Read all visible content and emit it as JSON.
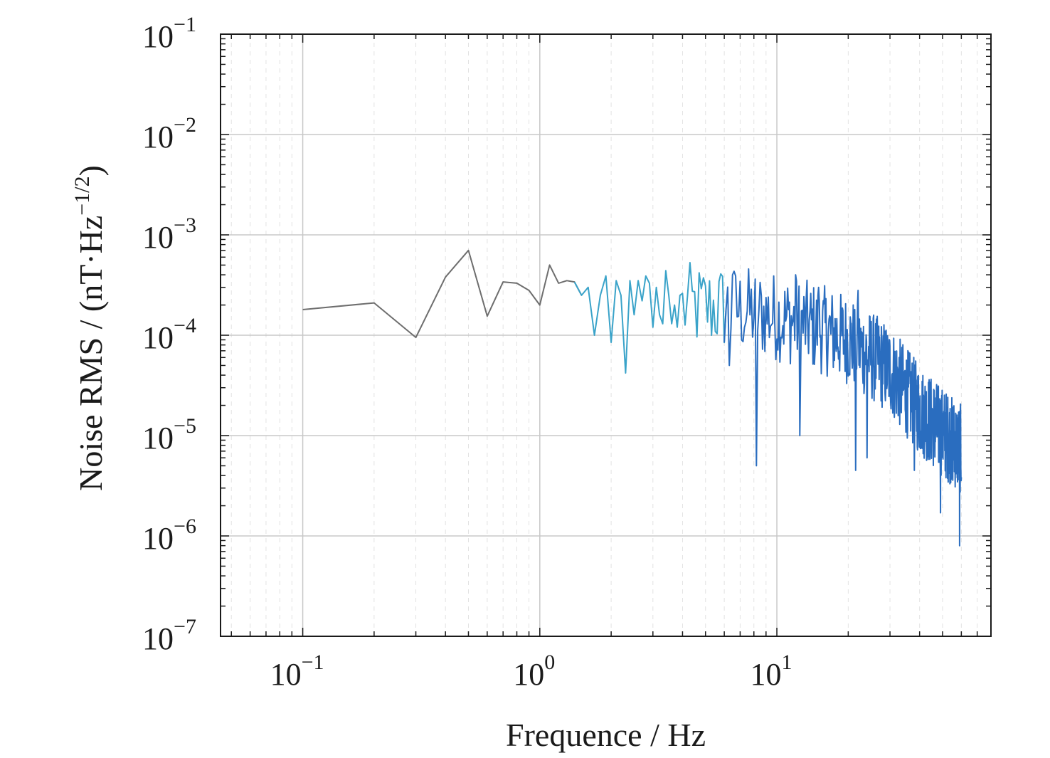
{
  "chart_data": {
    "type": "line",
    "title": "",
    "xlabel": "Frequence / Hz",
    "ylabel": "Noise RMS / (nT·Hz",
    "ylabel_sup": "−1/2",
    "ylabel_close": ")",
    "x_scale": "log",
    "y_scale": "log",
    "xlim": [
      0.045,
      80
    ],
    "ylim": [
      1e-07,
      0.1
    ],
    "grid": true,
    "legend": "none",
    "x_ticks": [
      {
        "value": 0.1,
        "base": "10",
        "exp": "−1"
      },
      {
        "value": 1,
        "base": "10",
        "exp": "0"
      },
      {
        "value": 10,
        "base": "10",
        "exp": "1"
      }
    ],
    "y_ticks": [
      {
        "value": 0.1,
        "base": "10",
        "exp": "−1"
      },
      {
        "value": 0.01,
        "base": "10",
        "exp": "−2"
      },
      {
        "value": 0.001,
        "base": "10",
        "exp": "−3"
      },
      {
        "value": 0.0001,
        "base": "10",
        "exp": "−4"
      },
      {
        "value": 1e-05,
        "base": "10",
        "exp": "−5"
      },
      {
        "value": 1e-06,
        "base": "10",
        "exp": "−6"
      },
      {
        "value": 1e-07,
        "base": "10",
        "exp": "−7"
      }
    ],
    "series": [
      {
        "color_start": "#6e6e6e",
        "color_mid": "#3aa3c9",
        "color_end": "#2a6dbf",
        "x": [
          0.1,
          0.2,
          0.3,
          0.4,
          0.5,
          0.6,
          0.7,
          0.8,
          0.9,
          1.0,
          1.1,
          1.2,
          1.3,
          1.4,
          1.5,
          1.6,
          1.7,
          1.8,
          1.9,
          2.0,
          2.1,
          2.2,
          2.3,
          2.4,
          2.5,
          2.6,
          2.7,
          2.8,
          2.9,
          3.0,
          3.1,
          3.2,
          3.3,
          3.4,
          3.5,
          3.6,
          3.7,
          3.8,
          3.9
        ],
        "y": [
          0.00018,
          0.00021,
          9.5e-05,
          0.00038,
          0.0007,
          0.000155,
          0.00034,
          0.00033,
          0.00028,
          0.0002,
          0.0005,
          0.00033,
          0.00035,
          0.00034,
          0.00025,
          0.0003,
          0.0001,
          0.00025,
          0.00039,
          8.5e-05,
          0.00035,
          0.00025,
          4.2e-05,
          0.00035,
          0.00016,
          0.00035,
          0.00022,
          0.00039,
          0.00033,
          0.00012,
          0.0003,
          0.00016,
          0.00013,
          0.00044,
          0.00025,
          0.00013,
          0.0002,
          0.00012,
          0.00025
        ],
        "noise_region": {
          "x_start": 4.0,
          "x_end": 60,
          "step": 0.1,
          "envelope": [
            {
              "x": 4.0,
              "median": 0.00021
            },
            {
              "x": 6.0,
              "median": 0.00021
            },
            {
              "x": 10,
              "median": 0.00017
            },
            {
              "x": 15,
              "median": 0.00013
            },
            {
              "x": 20,
              "median": 0.0001
            },
            {
              "x": 30,
              "median": 5e-05
            },
            {
              "x": 40,
              "median": 2e-05
            },
            {
              "x": 50,
              "median": 1.2e-05
            },
            {
              "x": 60,
              "median": 8e-06
            }
          ],
          "dips": [
            {
              "x": 6.3,
              "y": 5e-05
            },
            {
              "x": 8.2,
              "y": 5e-06
            },
            {
              "x": 12.5,
              "y": 1e-05
            },
            {
              "x": 21.5,
              "y": 4.5e-06
            },
            {
              "x": 24.0,
              "y": 6e-06
            },
            {
              "x": 38.0,
              "y": 4.5e-06
            },
            {
              "x": 49.0,
              "y": 1.7e-06
            },
            {
              "x": 59.0,
              "y": 8e-07
            }
          ],
          "peaks": [
            {
              "x": 6.5,
              "y": 0.0004
            },
            {
              "x": 12.0,
              "y": 0.0004
            },
            {
              "x": 15.0,
              "y": 0.0003
            },
            {
              "x": 22.0,
              "y": 0.00028
            }
          ]
        }
      }
    ]
  }
}
